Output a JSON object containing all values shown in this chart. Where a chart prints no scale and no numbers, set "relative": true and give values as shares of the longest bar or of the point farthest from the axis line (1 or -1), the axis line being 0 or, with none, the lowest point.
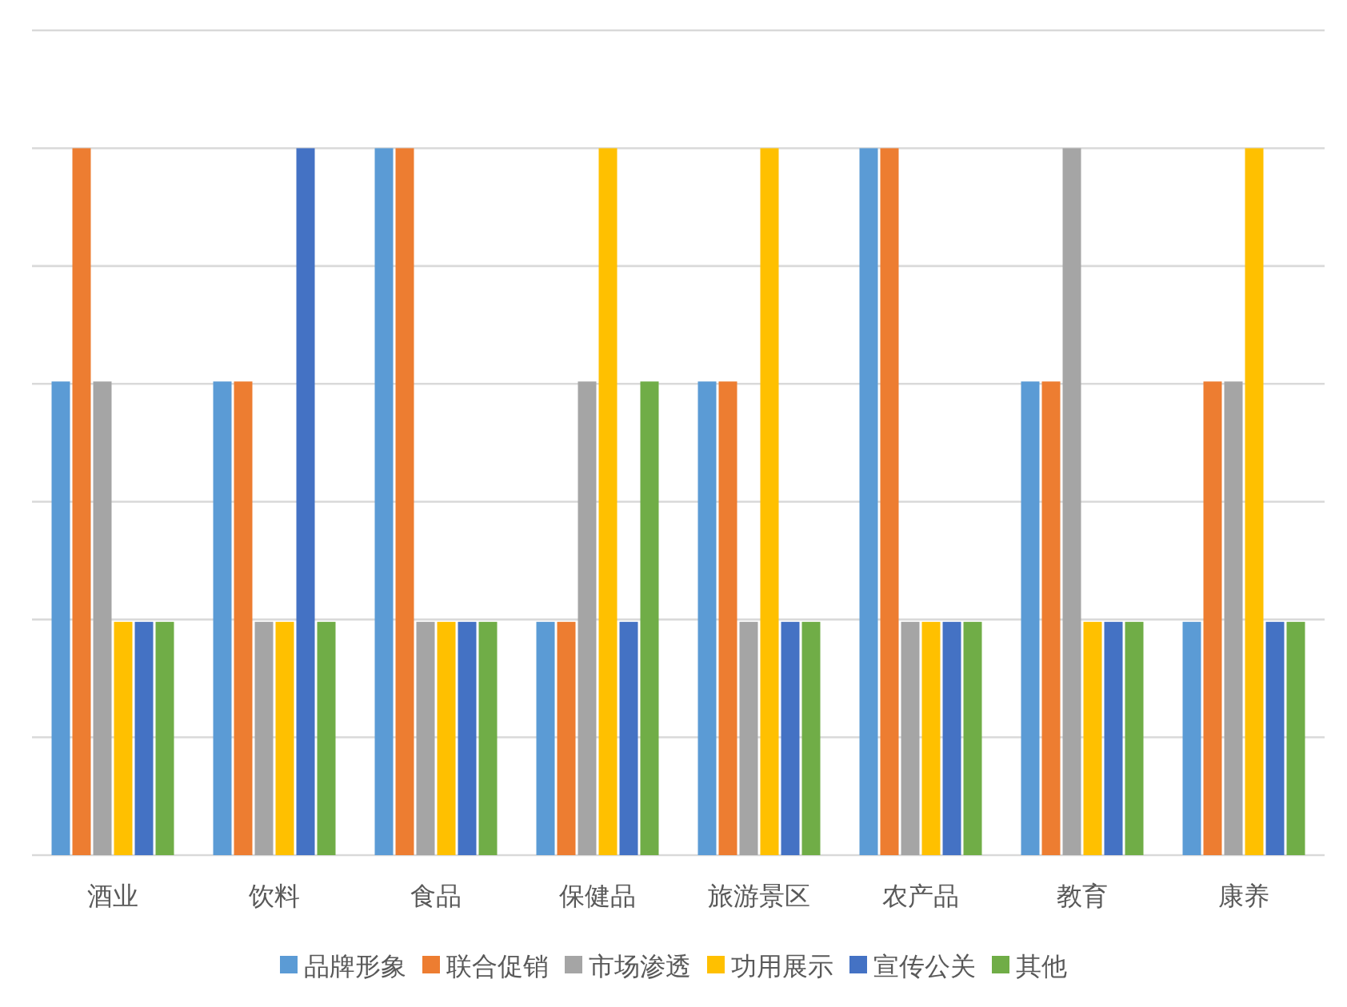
{
  "chart_data": {
    "type": "bar",
    "relative": true,
    "grid": "y",
    "legend": "bottom",
    "categories": [
      "酒业",
      "饮料",
      "食品",
      "保健品",
      "旅游景区",
      "农产品",
      "教育",
      "康养"
    ],
    "series": [
      {
        "name": "品牌形象",
        "color": "#5b9bd5",
        "values": [
          0.67,
          0.67,
          1,
          0.33,
          0.67,
          1,
          0.67,
          0.33
        ]
      },
      {
        "name": "联合促销",
        "color": "#ed7d31",
        "values": [
          1,
          0.67,
          1,
          0.33,
          0.67,
          1,
          0.67,
          0.67
        ]
      },
      {
        "name": "市场渗透",
        "color": "#a5a5a5",
        "values": [
          0.67,
          0.33,
          0.33,
          0.67,
          0.33,
          0.33,
          1,
          0.67
        ]
      },
      {
        "name": "功用展示",
        "color": "#ffc000",
        "values": [
          0.33,
          0.33,
          0.33,
          1,
          1,
          0.33,
          0.33,
          1
        ]
      },
      {
        "name": "宣传公关",
        "color": "#4472c4",
        "values": [
          0.33,
          1,
          0.33,
          0.33,
          0.33,
          0.33,
          0.33,
          0.33
        ]
      },
      {
        "name": "其他",
        "color": "#70ad47",
        "values": [
          0.33,
          0.33,
          0.33,
          0.67,
          0.33,
          0.33,
          0.33,
          0.33
        ]
      }
    ]
  }
}
